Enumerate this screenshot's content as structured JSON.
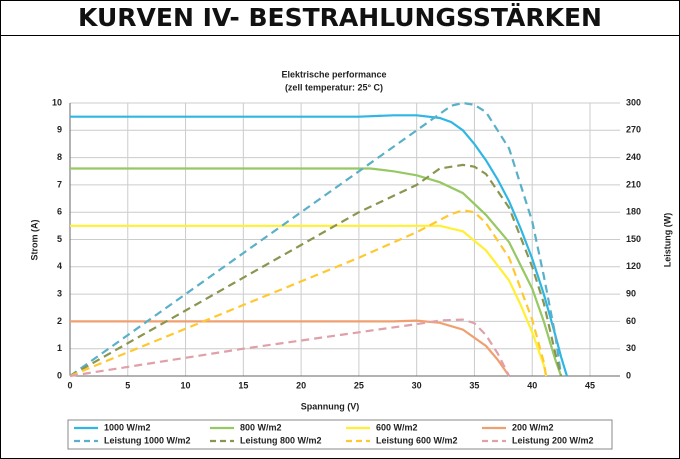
{
  "page_title": "KURVEN IV- BESTRAHLUNGSSTÄRKEN",
  "chart_data": {
    "type": "line",
    "title": "Elektrische performance",
    "subtitle": "(zell temperatur: 25° C)",
    "x_label": "Spannung (V)",
    "y_label": "Strom (A)",
    "y2_label": "Leistung (W)",
    "xlim": [
      0,
      45
    ],
    "xticks": [
      0,
      5,
      10,
      15,
      20,
      25,
      30,
      35,
      40,
      45
    ],
    "ylim": [
      0,
      10
    ],
    "yticks": [
      0,
      1,
      2,
      3,
      4,
      5,
      6,
      7,
      8,
      9,
      10
    ],
    "y2lim": [
      0,
      300
    ],
    "y2ticks": [
      0,
      30,
      60,
      90,
      120,
      150,
      180,
      210,
      240,
      270,
      300
    ],
    "grid": true,
    "series": [
      {
        "name": "1000 W/m2",
        "color": "#2fb6e5",
        "dashed": false,
        "x": [
          0,
          5,
          10,
          15,
          20,
          25,
          28,
          30,
          32,
          33,
          34,
          35,
          36,
          37,
          38,
          39,
          40,
          41,
          42,
          42.5,
          43
        ],
        "values": [
          9.5,
          9.5,
          9.5,
          9.5,
          9.5,
          9.5,
          9.55,
          9.55,
          9.45,
          9.3,
          9.0,
          8.5,
          7.9,
          7.2,
          6.4,
          5.4,
          4.3,
          3.0,
          1.5,
          0.7,
          0
        ]
      },
      {
        "name": "800 W/m2",
        "color": "#96c864",
        "dashed": false,
        "x": [
          0,
          5,
          10,
          15,
          20,
          25,
          26,
          28,
          30,
          32,
          34,
          36,
          38,
          40,
          41,
          42,
          42.5
        ],
        "values": [
          7.6,
          7.6,
          7.6,
          7.6,
          7.6,
          7.6,
          7.6,
          7.5,
          7.35,
          7.1,
          6.7,
          5.9,
          4.9,
          3.2,
          2.0,
          0.6,
          0
        ]
      },
      {
        "name": "600 W/m2",
        "color": "#fff033",
        "dashed": false,
        "x": [
          0,
          5,
          10,
          15,
          20,
          25,
          30,
          32,
          34,
          36,
          38,
          39,
          40,
          41,
          41.2
        ],
        "values": [
          5.5,
          5.5,
          5.5,
          5.5,
          5.5,
          5.5,
          5.5,
          5.5,
          5.3,
          4.6,
          3.5,
          2.6,
          1.6,
          0.4,
          0
        ]
      },
      {
        "name": "200 W/m2",
        "color": "#f0a070",
        "dashed": false,
        "x": [
          0,
          5,
          10,
          15,
          20,
          25,
          28,
          30,
          32,
          34,
          36,
          37,
          38
        ],
        "values": [
          2.0,
          2.0,
          2.0,
          2.0,
          2.0,
          2.0,
          2.0,
          2.03,
          1.95,
          1.7,
          1.1,
          0.6,
          0
        ]
      },
      {
        "name": "Leistung 1000 W/m2",
        "color": "#5ab0c8",
        "dashed": true,
        "axis": "y2",
        "x": [
          0,
          5,
          10,
          15,
          20,
          25,
          30,
          33,
          34,
          35,
          36,
          38,
          40,
          41,
          42,
          42.5
        ],
        "values": [
          0,
          45,
          90,
          135,
          180,
          225,
          270,
          297,
          300,
          298,
          290,
          250,
          170,
          110,
          45,
          0
        ]
      },
      {
        "name": "Leistung 800 W/m2",
        "color": "#8a9650",
        "dashed": true,
        "axis": "y2",
        "x": [
          0,
          5,
          10,
          15,
          20,
          25,
          30,
          32,
          34,
          35,
          36,
          38,
          40,
          41,
          42,
          42.5
        ],
        "values": [
          0,
          36,
          72,
          108,
          144,
          180,
          210,
          228,
          232,
          230,
          222,
          185,
          120,
          80,
          25,
          0
        ]
      },
      {
        "name": "Leistung 600 W/m2",
        "color": "#ffc830",
        "dashed": true,
        "axis": "y2",
        "x": [
          0,
          5,
          10,
          15,
          20,
          25,
          30,
          33,
          34,
          35,
          36,
          38,
          40,
          41,
          41.2
        ],
        "values": [
          0,
          26,
          52,
          78,
          104,
          130,
          158,
          178,
          182,
          180,
          168,
          130,
          62,
          15,
          0
        ]
      },
      {
        "name": "Leistung 200 W/m2",
        "color": "#e0a0a8",
        "dashed": true,
        "axis": "y2",
        "x": [
          0,
          5,
          10,
          15,
          20,
          25,
          30,
          32,
          34,
          35,
          36,
          37,
          38
        ],
        "values": [
          0,
          10,
          20,
          30,
          39,
          48,
          57,
          61,
          62,
          58,
          45,
          25,
          0
        ]
      }
    ]
  }
}
